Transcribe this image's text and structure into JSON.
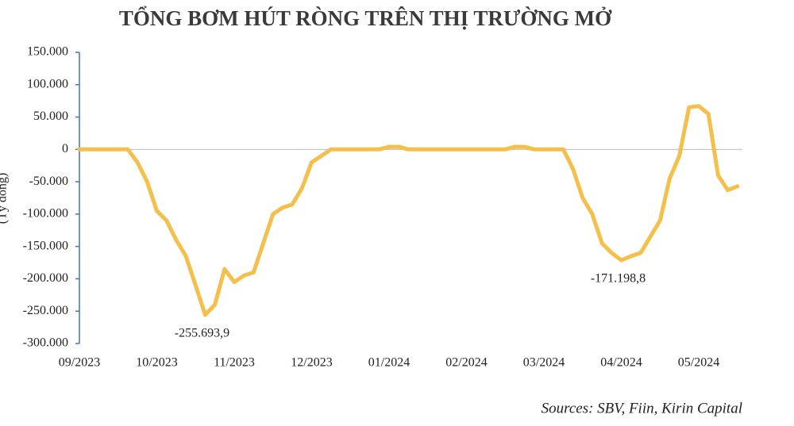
{
  "chart_data": {
    "type": "line",
    "title": "TỔNG BƠM HÚT RÒNG TRÊN THỊ TRƯỜNG MỞ",
    "y_label": "(Tỷ đồng)",
    "source": "Sources: SBV, Fiin, Kirin Capital",
    "color": "#f4bf4a",
    "categories": [
      "09/2023",
      null,
      null,
      null,
      null,
      null,
      null,
      null,
      "10/2023",
      null,
      null,
      null,
      null,
      null,
      null,
      null,
      "11/2023",
      null,
      null,
      null,
      null,
      null,
      null,
      null,
      "12/2023",
      null,
      null,
      null,
      null,
      null,
      null,
      null,
      "01/2024",
      null,
      null,
      null,
      null,
      null,
      null,
      null,
      "02/2024",
      null,
      null,
      null,
      null,
      null,
      null,
      null,
      "03/2024",
      null,
      null,
      null,
      null,
      null,
      null,
      null,
      "04/2024",
      null,
      null,
      null,
      null,
      null,
      null,
      null,
      "05/2024",
      null,
      null,
      null,
      null
    ],
    "values": [
      0,
      0,
      0,
      0,
      0,
      0,
      -20000,
      -50000,
      -95000,
      -110000,
      -140000,
      -165000,
      -210000,
      -255693.9,
      -240000,
      -185000,
      -205000,
      -195000,
      -190000,
      -145000,
      -100000,
      -90000,
      -85000,
      -60000,
      -20000,
      -10000,
      0,
      0,
      0,
      0,
      0,
      0,
      4000,
      4000,
      0,
      0,
      0,
      0,
      0,
      0,
      0,
      0,
      0,
      0,
      0,
      4000,
      4000,
      0,
      0,
      0,
      0,
      -30000,
      -75000,
      -100000,
      -145000,
      -160000,
      -171198.8,
      -165000,
      -160000,
      -135000,
      -110000,
      -45000,
      -10000,
      65000,
      67000,
      55000,
      -40000,
      -63000,
      -57000
    ],
    "value_labels": [
      null,
      null,
      null,
      null,
      null,
      null,
      null,
      null,
      null,
      null,
      null,
      null,
      null,
      "-255.693,9",
      null,
      null,
      null,
      null,
      null,
      null,
      null,
      null,
      null,
      null,
      null,
      null,
      null,
      null,
      null,
      null,
      null,
      null,
      null,
      null,
      null,
      null,
      null,
      null,
      null,
      null,
      null,
      null,
      null,
      null,
      null,
      null,
      null,
      null,
      null,
      null,
      null,
      null,
      null,
      null,
      null,
      null,
      "-171.198,8",
      null,
      null,
      null,
      null,
      null,
      null,
      null,
      null,
      null,
      null,
      null,
      null
    ],
    "ylim": [
      -300000,
      150000
    ],
    "yticks": [
      {
        "value": -300000,
        "label": "-300.000"
      },
      {
        "value": -250000,
        "label": "-250.000"
      },
      {
        "value": -200000,
        "label": "-200.000"
      },
      {
        "value": -150000,
        "label": "-150.000"
      },
      {
        "value": -100000,
        "label": "-100.000"
      },
      {
        "value": -50000,
        "label": "-50.000"
      },
      0,
      {
        "value": 50000,
        "label": "50.000"
      },
      {
        "value": 100000,
        "label": "100.000"
      },
      {
        "value": 150000,
        "label": "150.000"
      }
    ]
  }
}
